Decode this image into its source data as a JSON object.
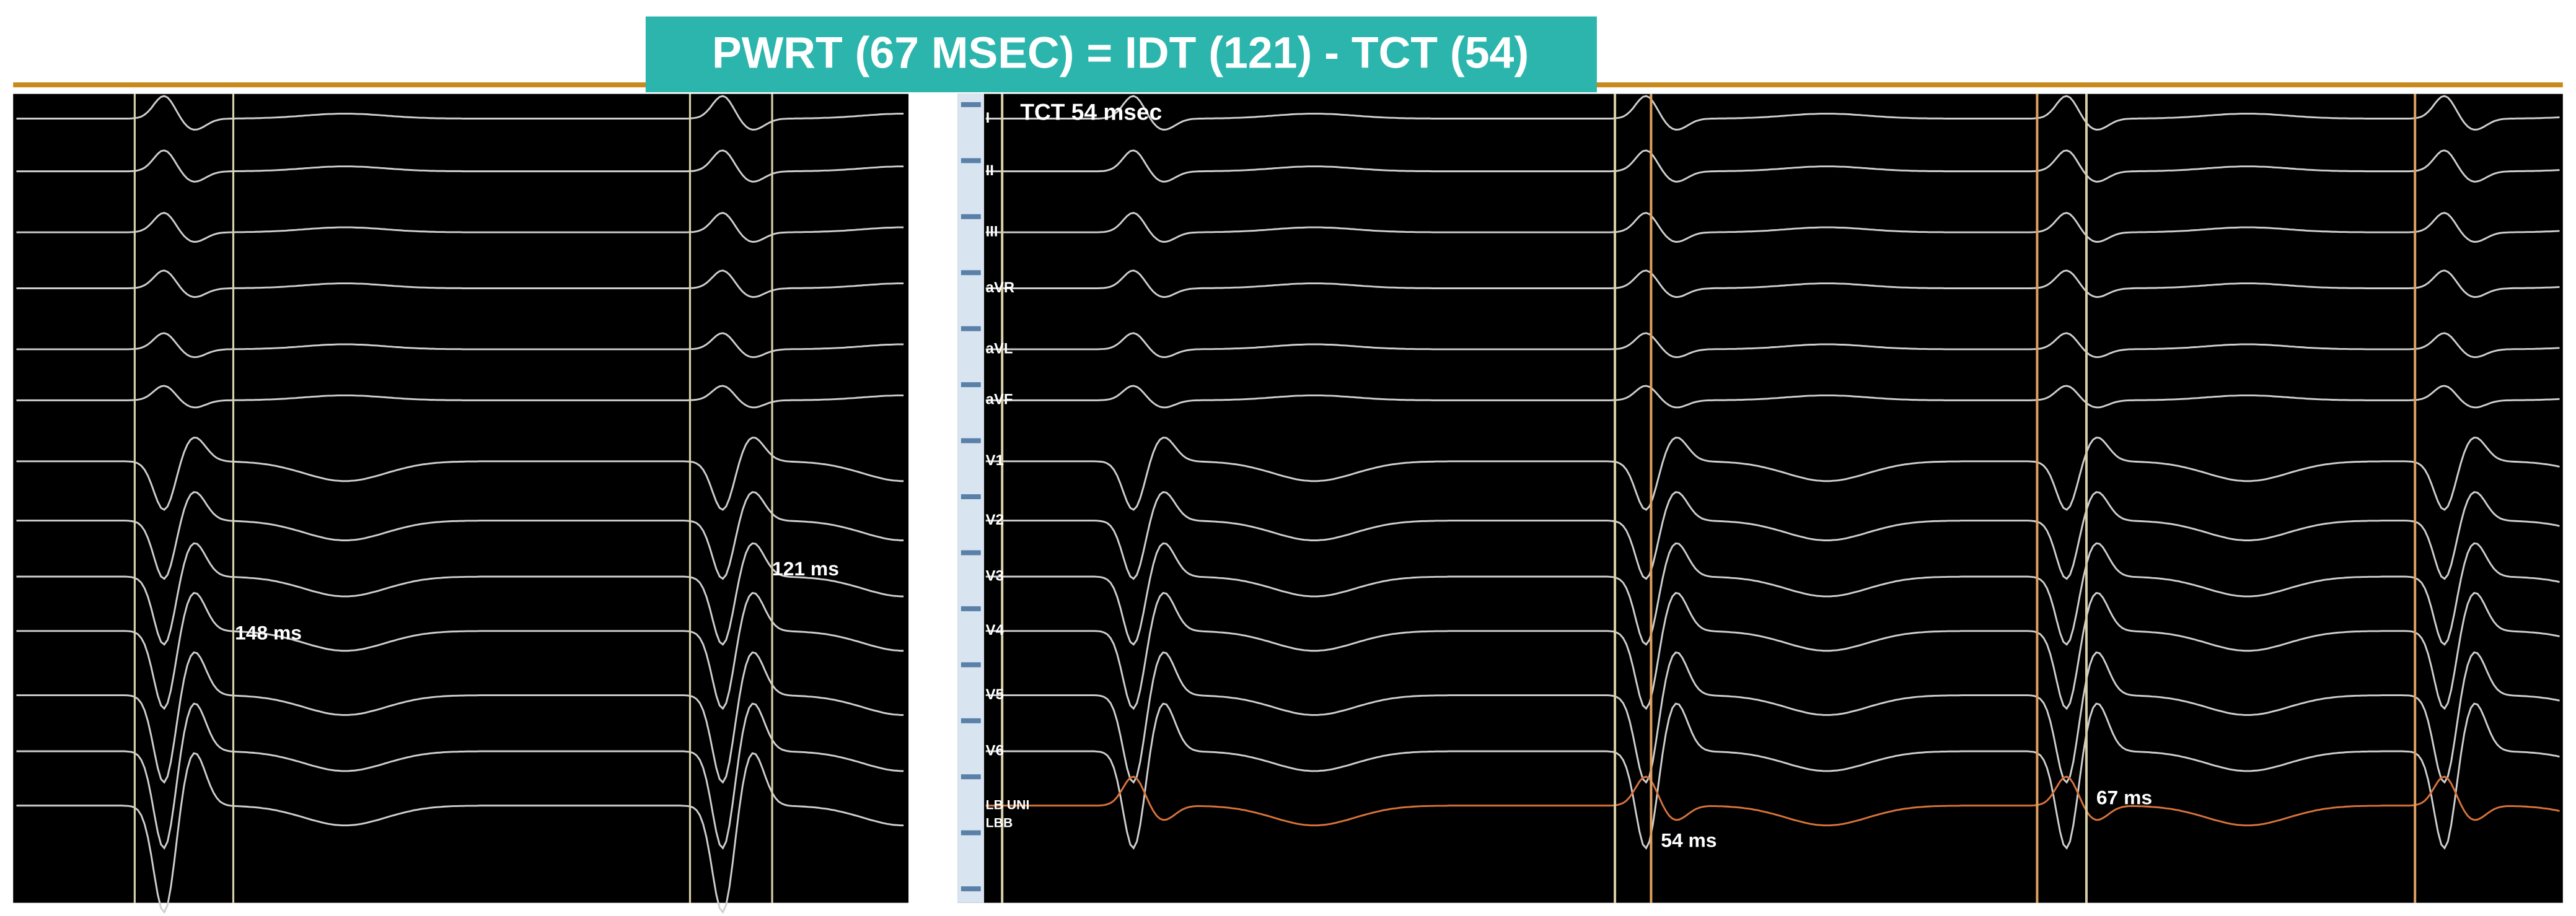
{
  "header": {
    "title": "PWRT (67 MSEC)  = IDT (121) -  TCT (54)"
  },
  "left_panel": {
    "annotations": [
      "148 ms",
      "121 ms"
    ]
  },
  "right_panel": {
    "title": "TCT 54 msec",
    "leads": [
      "I",
      "II",
      "III",
      "aVR",
      "aVL",
      "aVF",
      "V1",
      "V2",
      "V3",
      "V4",
      "V5",
      "V6",
      "LB UNI",
      "LBB"
    ],
    "annotations": [
      "54 ms",
      "67 ms"
    ]
  }
}
